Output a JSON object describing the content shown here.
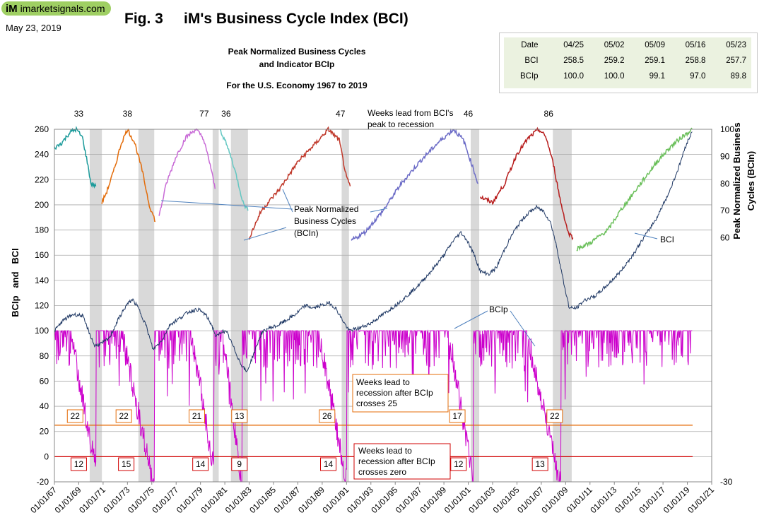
{
  "header": {
    "logo_text": "imarketsignals.com",
    "logo_mark": "iM",
    "date": "May 23, 2019",
    "fig_title": "Fig. 3     iM's Business Cycle Index (BCI)",
    "subtitle_line1": "Peak Normalized Business Cycles",
    "subtitle_line2": "and Indicator BCIp",
    "subtitle_line3": "For the U.S. Economy 1967  to 2019"
  },
  "table": {
    "headers": [
      "Date",
      "04/25",
      "05/02",
      "05/09",
      "05/16",
      "05/23"
    ],
    "rows": [
      [
        "BCI",
        "258.5",
        "259.2",
        "259.1",
        "258.8",
        "257.7"
      ],
      [
        "BCIp",
        "100.0",
        "100.0",
        "99.1",
        "97.0",
        "89.8"
      ]
    ]
  },
  "annotations": {
    "weeks_lead_label": [
      "Weeks lead from BCI's",
      "peak to recession"
    ],
    "peak_norm_label": [
      "Peak Normalized",
      "Business Cycles",
      "(BCIn)"
    ],
    "bci_label": "BCI",
    "bcip_label": "BCIp",
    "box25": [
      "Weeks lead to",
      "recession after BCIp",
      "crosses 25"
    ],
    "box0": [
      "Weeks  lead  to",
      "recession after BCIp",
      "crosses zero"
    ]
  },
  "chart_data": {
    "type": "line",
    "left_axis": {
      "label": "BCIp   and   BCI",
      "ylim": [
        -20,
        260
      ],
      "ticks": [
        -20,
        0,
        20,
        40,
        60,
        80,
        100,
        120,
        140,
        160,
        180,
        200,
        220,
        240,
        260
      ]
    },
    "right_axis": {
      "label": "Peak Normalized Business Cycles (BCIn)",
      "ylim": [
        -30,
        100
      ],
      "tick_labels": [
        "100",
        "90",
        "80",
        "70",
        "60",
        "-30"
      ]
    },
    "x_tick_labels": [
      "01/01/67",
      "01/01/69",
      "01/01/71",
      "01/01/73",
      "01/01/75",
      "01/01/77",
      "01/01/79",
      "01/01/81",
      "01/01/83",
      "01/01/85",
      "01/01/87",
      "01/01/89",
      "01/01/91",
      "01/01/93",
      "01/01/95",
      "01/01/97",
      "01/01/99",
      "01/01/01",
      "01/01/03",
      "01/01/05",
      "01/01/07",
      "01/01/09",
      "01/01/11",
      "01/01/13",
      "01/01/15",
      "01/01/17",
      "01/01/19",
      "01/01/21"
    ],
    "xlim": [
      1967,
      2021
    ],
    "reference_lines": [
      {
        "name": "25",
        "y": 25,
        "color": "#e46c0a"
      },
      {
        "name": "0",
        "y": 0,
        "color": "#d00000"
      }
    ],
    "recessions": [
      [
        1969.9,
        1970.9
      ],
      [
        1973.9,
        1975.2
      ],
      [
        1980.0,
        1980.5
      ],
      [
        1981.5,
        1982.9
      ],
      [
        1990.6,
        1991.2
      ],
      [
        2001.2,
        2001.9
      ],
      [
        2007.95,
        2009.5
      ]
    ],
    "weeks_lead_peak": [
      {
        "x": 1969.0,
        "label": "33"
      },
      {
        "x": 1973.0,
        "label": "38"
      },
      {
        "x": 1979.3,
        "label": "77"
      },
      {
        "x": 1981.1,
        "label": "36"
      },
      {
        "x": 1990.5,
        "label": "47"
      },
      {
        "x": 2001.0,
        "label": "46"
      },
      {
        "x": 2007.6,
        "label": "86"
      }
    ],
    "weeks_lead_25": [
      {
        "x": 1968.7,
        "label": "22"
      },
      {
        "x": 1972.7,
        "label": "22"
      },
      {
        "x": 1978.7,
        "label": "21"
      },
      {
        "x": 1982.2,
        "label": "13"
      },
      {
        "x": 1989.4,
        "label": "26"
      },
      {
        "x": 2000.1,
        "label": "17"
      },
      {
        "x": 2008.1,
        "label": "22"
      }
    ],
    "weeks_lead_0": [
      {
        "x": 1969.0,
        "label": "12"
      },
      {
        "x": 1972.9,
        "label": "15"
      },
      {
        "x": 1979.0,
        "label": "14"
      },
      {
        "x": 1982.2,
        "label": "9"
      },
      {
        "x": 1989.5,
        "label": "14"
      },
      {
        "x": 2000.2,
        "label": "12"
      },
      {
        "x": 2006.9,
        "label": "13"
      }
    ],
    "series": [
      {
        "name": "BCI",
        "color": "#1f3864",
        "points": [
          [
            1967.0,
            100
          ],
          [
            1967.7,
            108
          ],
          [
            1968.5,
            113
          ],
          [
            1969.3,
            112
          ],
          [
            1969.8,
            100
          ],
          [
            1970.3,
            88
          ],
          [
            1970.9,
            90
          ],
          [
            1971.5,
            94
          ],
          [
            1972.3,
            110
          ],
          [
            1972.9,
            120
          ],
          [
            1973.4,
            125
          ],
          [
            1973.9,
            118
          ],
          [
            1974.5,
            105
          ],
          [
            1975.1,
            85
          ],
          [
            1975.8,
            92
          ],
          [
            1976.5,
            105
          ],
          [
            1977.3,
            110
          ],
          [
            1978.0,
            115
          ],
          [
            1978.8,
            117
          ],
          [
            1979.4,
            113
          ],
          [
            1979.9,
            105
          ],
          [
            1980.3,
            95
          ],
          [
            1980.8,
            100
          ],
          [
            1981.2,
            98
          ],
          [
            1981.8,
            85
          ],
          [
            1982.3,
            74
          ],
          [
            1982.8,
            67
          ],
          [
            1983.5,
            85
          ],
          [
            1984.0,
            98
          ],
          [
            1984.6,
            102
          ],
          [
            1985.3,
            104
          ],
          [
            1986.0,
            108
          ],
          [
            1986.8,
            113
          ],
          [
            1987.6,
            120
          ],
          [
            1988.3,
            118
          ],
          [
            1988.9,
            120
          ],
          [
            1989.6,
            122
          ],
          [
            1990.1,
            118
          ],
          [
            1990.7,
            108
          ],
          [
            1991.2,
            100
          ],
          [
            1992.0,
            102
          ],
          [
            1993.0,
            106
          ],
          [
            1994.0,
            113
          ],
          [
            1995.0,
            120
          ],
          [
            1996.0,
            128
          ],
          [
            1997.0,
            137
          ],
          [
            1998.0,
            148
          ],
          [
            1999.0,
            160
          ],
          [
            1999.8,
            172
          ],
          [
            2000.4,
            178
          ],
          [
            2000.9,
            172
          ],
          [
            2001.5,
            160
          ],
          [
            2002.0,
            147
          ],
          [
            2002.7,
            145
          ],
          [
            2003.3,
            150
          ],
          [
            2004.0,
            165
          ],
          [
            2004.7,
            178
          ],
          [
            2005.4,
            188
          ],
          [
            2006.0,
            194
          ],
          [
            2006.6,
            198
          ],
          [
            2007.2,
            195
          ],
          [
            2007.8,
            185
          ],
          [
            2008.3,
            165
          ],
          [
            2008.8,
            140
          ],
          [
            2009.3,
            118
          ],
          [
            2009.9,
            118
          ],
          [
            2010.5,
            124
          ],
          [
            2011.5,
            128
          ],
          [
            2012.5,
            137
          ],
          [
            2013.5,
            147
          ],
          [
            2014.5,
            160
          ],
          [
            2015.5,
            175
          ],
          [
            2016.5,
            190
          ],
          [
            2017.5,
            210
          ],
          [
            2018.3,
            230
          ],
          [
            2018.9,
            248
          ],
          [
            2019.4,
            258
          ]
        ]
      },
      {
        "name": "BCIn",
        "color": "#2e8b8b",
        "segments": [
          {
            "color": "#1a9a9a",
            "points": [
              [
                1967.0,
                93
              ],
              [
                1967.6,
                95
              ],
              [
                1968.3,
                99
              ],
              [
                1968.8,
                100
              ],
              [
                1969.3,
                97
              ],
              [
                1969.7,
                88
              ],
              [
                1970.0,
                80
              ],
              [
                1970.4,
                79
              ]
            ]
          },
          {
            "color": "#e36c0a",
            "points": [
              [
                1970.9,
                73
              ],
              [
                1971.3,
                77
              ],
              [
                1971.9,
                85
              ],
              [
                1972.5,
                95
              ],
              [
                1973.0,
                100
              ],
              [
                1973.6,
                95
              ],
              [
                1974.2,
                85
              ],
              [
                1974.8,
                72
              ],
              [
                1975.3,
                66
              ]
            ]
          },
          {
            "color": "#c86ad6",
            "points": [
              [
                1975.6,
                68
              ],
              [
                1976.2,
                80
              ],
              [
                1977.0,
                90
              ],
              [
                1977.8,
                97
              ],
              [
                1978.6,
                100
              ],
              [
                1979.2,
                97
              ],
              [
                1979.8,
                87
              ],
              [
                1980.2,
                78
              ]
            ]
          },
          {
            "color": "#63c7c2",
            "points": [
              [
                1980.6,
                100
              ],
              [
                1981.0,
                96
              ],
              [
                1981.5,
                90
              ],
              [
                1982.0,
                82
              ],
              [
                1982.5,
                73
              ],
              [
                1982.9,
                70
              ]
            ]
          },
          {
            "color": "#c0392b",
            "points": [
              [
                1983.0,
                60
              ],
              [
                1984.0,
                70
              ],
              [
                1985.5,
                78
              ],
              [
                1987.0,
                88
              ],
              [
                1988.5,
                95
              ],
              [
                1989.5,
                100
              ],
              [
                1990.4,
                96
              ],
              [
                1991.0,
                82
              ],
              [
                1991.3,
                79
              ]
            ]
          },
          {
            "color": "#6a6ac6",
            "points": [
              [
                1991.4,
                59
              ],
              [
                1992.5,
                62
              ],
              [
                1994.0,
                70
              ],
              [
                1995.5,
                80
              ],
              [
                1997.0,
                88
              ],
              [
                1998.5,
                95
              ],
              [
                1999.8,
                100
              ],
              [
                2000.6,
                96
              ],
              [
                2001.3,
                87
              ],
              [
                2001.8,
                80
              ]
            ]
          },
          {
            "color": "#b71c1c",
            "points": [
              [
                2002.0,
                75
              ],
              [
                2003.0,
                73
              ],
              [
                2004.0,
                80
              ],
              [
                2005.0,
                91
              ],
              [
                2006.0,
                97
              ],
              [
                2006.8,
                100
              ],
              [
                2007.4,
                97
              ],
              [
                2008.0,
                87
              ],
              [
                2008.6,
                73
              ],
              [
                2009.2,
                62
              ],
              [
                2009.6,
                60
              ]
            ]
          },
          {
            "color": "#6abf5a",
            "points": [
              [
                2009.9,
                56
              ],
              [
                2011.0,
                58
              ],
              [
                2012.5,
                63
              ],
              [
                2013.5,
                70
              ],
              [
                2014.5,
                76
              ],
              [
                2015.5,
                82
              ],
              [
                2016.5,
                88
              ],
              [
                2017.5,
                93
              ],
              [
                2018.5,
                97
              ],
              [
                2019.4,
                100
              ]
            ]
          }
        ]
      },
      {
        "name": "BCIp",
        "color": "#cc00cc",
        "note": "mostly at 100 with deep dips before recessions"
      }
    ]
  }
}
